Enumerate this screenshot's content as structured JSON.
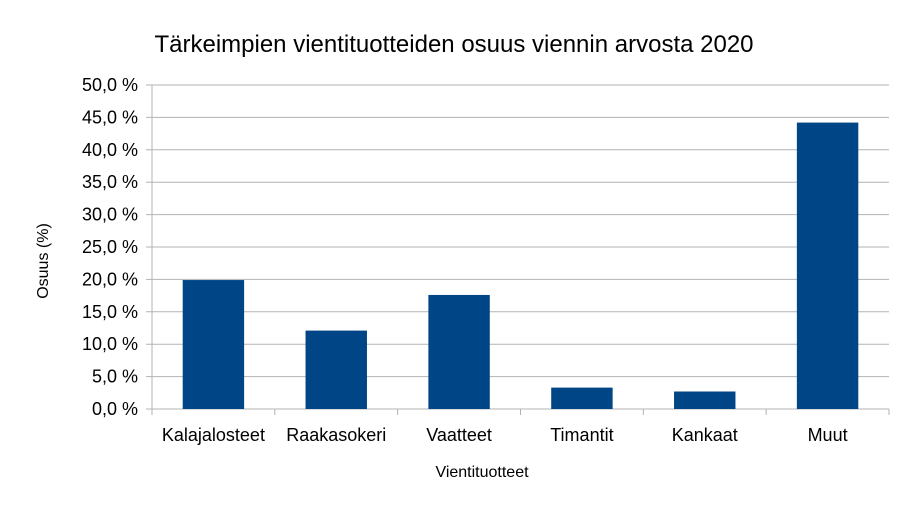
{
  "chart_data": {
    "type": "bar",
    "title": "Tärkeimpien vientituotteiden osuus viennin arvosta 2020",
    "xlabel": "Vientituotteet",
    "ylabel": "Osuus (%)",
    "categories": [
      "Kalajalosteet",
      "Raakasokeri",
      "Vaatteet",
      "Timantit",
      "Kankaat",
      "Muut"
    ],
    "values": [
      19.9,
      12.1,
      17.6,
      3.3,
      2.7,
      44.2
    ],
    "ylim": [
      0,
      50
    ],
    "yticks": [
      0,
      5,
      10,
      15,
      20,
      25,
      30,
      35,
      40,
      45,
      50
    ],
    "ytick_labels": [
      "0,0 %",
      "5,0 %",
      "10,0 %",
      "15,0 %",
      "20,0 %",
      "25,0 %",
      "30,0 %",
      "35,0 %",
      "40,0 %",
      "45,0 %",
      "50,0 %"
    ],
    "grid": true,
    "legend": "none",
    "bar_color": "#004586"
  }
}
